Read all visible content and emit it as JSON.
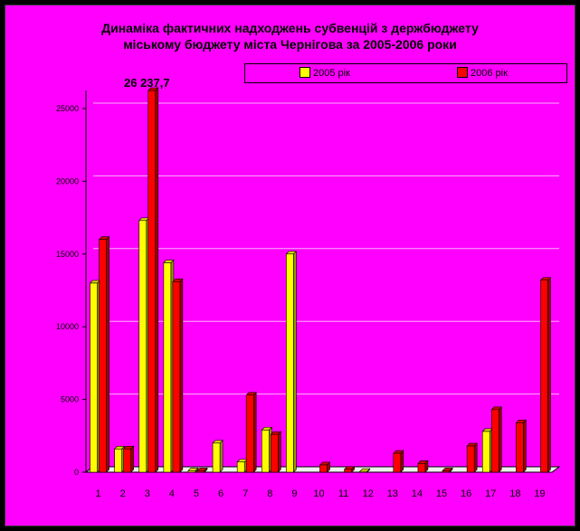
{
  "title": {
    "line1": "Динаміка фактичних надходжень субвенцій з держбюджету",
    "line2": "міському бюджету міста Чернігова за 2005-2006 роки"
  },
  "colors": {
    "background": "#ff00ff",
    "series_2005": "#ffff00",
    "series_2006": "#ff0000",
    "gridline": "#ffb0ff"
  },
  "chart_data": {
    "type": "bar",
    "title": "Динаміка фактичних надходжень субвенцій з держбюджету міському бюджету міста Чернігова за 2005-2006 роки",
    "categories": [
      "1",
      "2",
      "3",
      "4",
      "5",
      "6",
      "7",
      "8",
      "9",
      "10",
      "11",
      "12",
      "13",
      "14",
      "15",
      "16",
      "17",
      "18",
      "19"
    ],
    "series": [
      {
        "name": "2005 рік",
        "color": "#ffff00",
        "values": [
          13000,
          1600,
          17300,
          14400,
          100,
          2000,
          700,
          2900,
          15000,
          0,
          0,
          50,
          0,
          0,
          0,
          0,
          2800,
          0,
          0
        ]
      },
      {
        "name": "2006 рік",
        "color": "#ff0000",
        "values": [
          16000,
          1600,
          26237.7,
          13100,
          100,
          0,
          5300,
          2600,
          0,
          500,
          200,
          0,
          1300,
          600,
          100,
          1800,
          4300,
          3400,
          13200
        ]
      }
    ],
    "annotation": "26 237,7",
    "ylim": [
      0,
      25000
    ],
    "yticks": [
      0,
      5000,
      10000,
      15000,
      20000,
      25000
    ],
    "grid": true,
    "legend": "top-right"
  }
}
